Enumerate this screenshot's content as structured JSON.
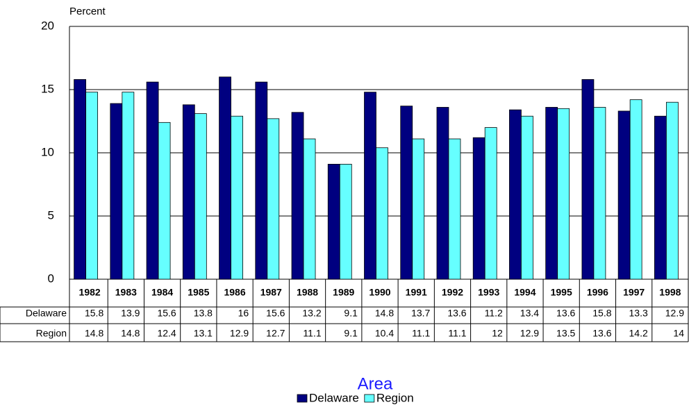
{
  "chart_data": {
    "type": "bar",
    "y_label": "Percent",
    "x_label": "Area",
    "categories": [
      "1982",
      "1983",
      "1984",
      "1985",
      "1986",
      "1987",
      "1988",
      "1989",
      "1990",
      "1991",
      "1992",
      "1993",
      "1994",
      "1995",
      "1996",
      "1997",
      "1998"
    ],
    "series": [
      {
        "name": "Delaware",
        "color": "#000080",
        "values": [
          15.8,
          13.9,
          15.6,
          13.8,
          16,
          15.6,
          13.2,
          9.1,
          14.8,
          13.7,
          13.6,
          11.2,
          13.4,
          13.6,
          15.8,
          13.3,
          12.9
        ]
      },
      {
        "name": "Region",
        "color": "#66ffff",
        "values": [
          14.8,
          14.8,
          12.4,
          13.1,
          12.9,
          12.7,
          11.1,
          9.1,
          10.4,
          11.1,
          11.1,
          12,
          12.9,
          13.5,
          13.6,
          14.2,
          14
        ]
      }
    ],
    "ylim": [
      0,
      20
    ],
    "yticks": [
      0,
      5,
      10,
      15,
      20
    ],
    "grid": true,
    "legend": "bottom"
  }
}
